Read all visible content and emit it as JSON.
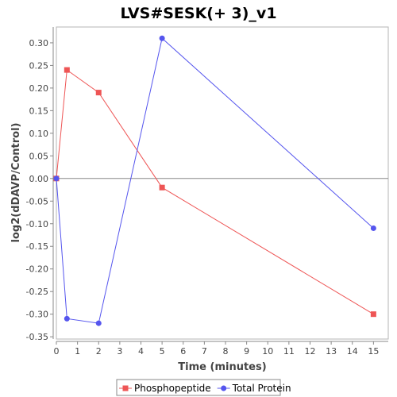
{
  "chart_data": {
    "type": "line",
    "title": "LVS#SESK(+ 3)_v1",
    "xlabel": "Time (minutes)",
    "ylabel": "log2(dDAVP/Control)",
    "xlim": [
      0,
      15.7
    ],
    "ylim": [
      -0.355,
      0.335
    ],
    "xticks": [
      0,
      1,
      2,
      3,
      4,
      5,
      6,
      7,
      8,
      9,
      10,
      11,
      12,
      13,
      14,
      15
    ],
    "yticks": [
      -0.35,
      -0.3,
      -0.25,
      -0.2,
      -0.15,
      -0.1,
      -0.05,
      0.0,
      0.05,
      0.1,
      0.15,
      0.2,
      0.25,
      0.3
    ],
    "ytick_labels": [
      "-0.35",
      "-0.30",
      "-0.25",
      "-0.20",
      "-0.15",
      "-0.10",
      "-0.05",
      "0.00",
      "0.05",
      "0.10",
      "0.15",
      "0.20",
      "0.25",
      "0.30"
    ],
    "zero_line": true,
    "grid": false,
    "legend_position": "bottom",
    "series": [
      {
        "name": "Phosphopeptide",
        "color": "#ee5555",
        "marker": "square",
        "x": [
          0,
          0.5,
          2,
          5,
          15
        ],
        "y": [
          0.0,
          0.24,
          0.19,
          -0.02,
          -0.3
        ]
      },
      {
        "name": "Total Protein",
        "color": "#5555ee",
        "marker": "circle",
        "x": [
          0,
          0.5,
          2,
          5,
          15
        ],
        "y": [
          0.0,
          -0.31,
          -0.32,
          0.31,
          -0.11
        ]
      }
    ]
  }
}
